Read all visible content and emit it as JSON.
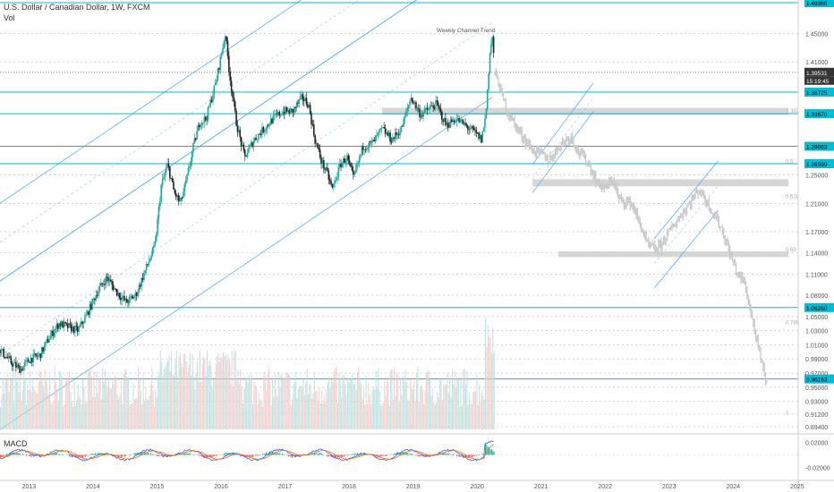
{
  "header": {
    "symbol": "U.S. Dollar / Canadian Dollar, 1W, FXCM",
    "vol_label": "Vol"
  },
  "macd_label": "MACD",
  "annotation": "Weekly Channel Trend",
  "colors": {
    "cyan_line": "#00bcd4",
    "channel_line": "#5ab0f0",
    "candle_up": "#26a69a",
    "candle_down": "#222222",
    "projection": "#c8c8c8",
    "zone": "#cfcfcf",
    "price_label_bg": "#00bcd4",
    "current_label_bg": "#333333",
    "vol_up": "#b2dfdb",
    "vol_down": "#f5c6c6",
    "macd_line": "#2962ff",
    "signal_line": "#ff6d00",
    "hist_pos": "#26a69a",
    "hist_neg": "#ef5350"
  },
  "chart_data": {
    "type": "candlestick",
    "title": "U.S. Dollar / Canadian Dollar, 1W, FXCM",
    "x_axis": {
      "ticks": [
        "2013",
        "2014",
        "2015",
        "2016",
        "2017",
        "2018",
        "2019",
        "2020",
        "2021",
        "2022",
        "2023",
        "2024",
        "2025"
      ],
      "range": [
        2012.53,
        2025.0
      ]
    },
    "y_axis": {
      "ticks": [
        "1.45000",
        "1.41000",
        "1.25000",
        "1.21000",
        "1.17000",
        "1.14000",
        "1.11000",
        "1.08000",
        "1.05000",
        "1.03000",
        "1.01000",
        "0.99000",
        "0.97000",
        "0.95000",
        "0.93000",
        "0.91200",
        "0.89400"
      ],
      "range": [
        0.884,
        1.4975
      ]
    },
    "horizontal_levels": [
      "1.49366",
      "1.36725",
      "1.33670",
      "1.29063",
      "1.26599",
      "1.06260",
      "0.96163"
    ],
    "current_price": "1.39531",
    "current_time_label": "15:19:45",
    "fib_levels": [
      {
        "label": "0.382",
        "value": 1.3367
      },
      {
        "label": "0.5",
        "value": 1.2656
      },
      {
        "label": "0.618",
        "value": 1.2158
      },
      {
        "label": "0.65",
        "value": 1.1405
      },
      {
        "label": "0.786",
        "value": 1.0378
      },
      {
        "label": "1",
        "value": 0.9105
      }
    ],
    "weekly_price_path": [
      [
        2012.53,
        1.003
      ],
      [
        2012.7,
        0.985
      ],
      [
        2012.85,
        0.975
      ],
      [
        2013.0,
        0.99
      ],
      [
        2013.15,
        0.995
      ],
      [
        2013.3,
        1.02
      ],
      [
        2013.45,
        1.04
      ],
      [
        2013.6,
        1.035
      ],
      [
        2013.75,
        1.03
      ],
      [
        2013.9,
        1.055
      ],
      [
        2014.05,
        1.085
      ],
      [
        2014.2,
        1.105
      ],
      [
        2014.35,
        1.085
      ],
      [
        2014.5,
        1.07
      ],
      [
        2014.65,
        1.08
      ],
      [
        2014.8,
        1.115
      ],
      [
        2014.95,
        1.15
      ],
      [
        2015.05,
        1.235
      ],
      [
        2015.15,
        1.265
      ],
      [
        2015.25,
        1.225
      ],
      [
        2015.35,
        1.21
      ],
      [
        2015.45,
        1.245
      ],
      [
        2015.55,
        1.29
      ],
      [
        2015.65,
        1.325
      ],
      [
        2015.75,
        1.33
      ],
      [
        2015.9,
        1.38
      ],
      [
        2016.05,
        1.45
      ],
      [
        2016.12,
        1.39
      ],
      [
        2016.22,
        1.325
      ],
      [
        2016.35,
        1.275
      ],
      [
        2016.5,
        1.3
      ],
      [
        2016.65,
        1.315
      ],
      [
        2016.8,
        1.33
      ],
      [
        2016.95,
        1.34
      ],
      [
        2017.1,
        1.34
      ],
      [
        2017.25,
        1.36
      ],
      [
        2017.35,
        1.35
      ],
      [
        2017.45,
        1.3
      ],
      [
        2017.55,
        1.27
      ],
      [
        2017.65,
        1.25
      ],
      [
        2017.72,
        1.23
      ],
      [
        2017.85,
        1.265
      ],
      [
        2017.95,
        1.275
      ],
      [
        2018.05,
        1.245
      ],
      [
        2018.2,
        1.29
      ],
      [
        2018.35,
        1.295
      ],
      [
        2018.5,
        1.315
      ],
      [
        2018.65,
        1.3
      ],
      [
        2018.8,
        1.315
      ],
      [
        2018.95,
        1.36
      ],
      [
        2019.1,
        1.335
      ],
      [
        2019.25,
        1.345
      ],
      [
        2019.35,
        1.35
      ],
      [
        2019.5,
        1.32
      ],
      [
        2019.65,
        1.33
      ],
      [
        2019.8,
        1.32
      ],
      [
        2019.95,
        1.31
      ],
      [
        2020.05,
        1.3
      ],
      [
        2020.12,
        1.335
      ],
      [
        2020.18,
        1.42
      ],
      [
        2020.22,
        1.447
      ],
      [
        2020.26,
        1.396
      ]
    ],
    "projection_path": [
      [
        2020.26,
        1.396
      ],
      [
        2020.45,
        1.34
      ],
      [
        2020.65,
        1.31
      ],
      [
        2020.85,
        1.285
      ],
      [
        2021.0,
        1.28
      ],
      [
        2021.1,
        1.27
      ],
      [
        2021.3,
        1.295
      ],
      [
        2021.45,
        1.305
      ],
      [
        2021.55,
        1.285
      ],
      [
        2021.7,
        1.27
      ],
      [
        2021.85,
        1.24
      ],
      [
        2022.0,
        1.23
      ],
      [
        2022.1,
        1.245
      ],
      [
        2022.2,
        1.215
      ],
      [
        2022.4,
        1.21
      ],
      [
        2022.55,
        1.175
      ],
      [
        2022.65,
        1.15
      ],
      [
        2022.8,
        1.145
      ],
      [
        2022.95,
        1.165
      ],
      [
        2023.1,
        1.185
      ],
      [
        2023.3,
        1.21
      ],
      [
        2023.45,
        1.23
      ],
      [
        2023.55,
        1.215
      ],
      [
        2023.65,
        1.2
      ],
      [
        2023.8,
        1.175
      ],
      [
        2023.95,
        1.135
      ],
      [
        2024.05,
        1.11
      ],
      [
        2024.15,
        1.1
      ],
      [
        2024.25,
        1.06
      ],
      [
        2024.35,
        1.015
      ],
      [
        2024.45,
        0.975
      ],
      [
        2024.52,
        0.952
      ]
    ],
    "channels": [
      {
        "name": "main-channel",
        "x1": 2012.53,
        "lower1": 0.89,
        "upper1": 1.1,
        "x2": 2020.22,
        "lower2": 1.36,
        "upper2": 1.57
      },
      {
        "name": "upper-channel",
        "x1": 2012.53,
        "lower1": 1.1,
        "upper1": 1.21,
        "x2": 2020.22,
        "lower2": 1.57,
        "upper2": 1.68
      },
      {
        "name": "proj-channel-2021",
        "x1": 2020.85,
        "lower1": 1.225,
        "upper1": 1.265,
        "x2": 2021.8,
        "lower2": 1.34,
        "upper2": 1.38
      },
      {
        "name": "proj-channel-2023",
        "x1": 2022.75,
        "lower1": 1.09,
        "upper1": 1.16,
        "x2": 2023.75,
        "lower2": 1.2,
        "upper2": 1.27
      }
    ],
    "zones": [
      {
        "x1": 2018.5,
        "x2": 2024.85,
        "top": 1.345,
        "bottom": 1.335
      },
      {
        "x1": 2020.85,
        "x2": 2024.85,
        "top": 1.244,
        "bottom": 1.234
      },
      {
        "x1": 2021.25,
        "x2": 2024.85,
        "top": 1.142,
        "bottom": 1.134
      }
    ],
    "macd_axis": {
      "ticks": [
        "0.02000",
        "-0.02000"
      ],
      "range": [
        -0.034,
        0.034
      ]
    },
    "volume_scale": 1.0
  }
}
